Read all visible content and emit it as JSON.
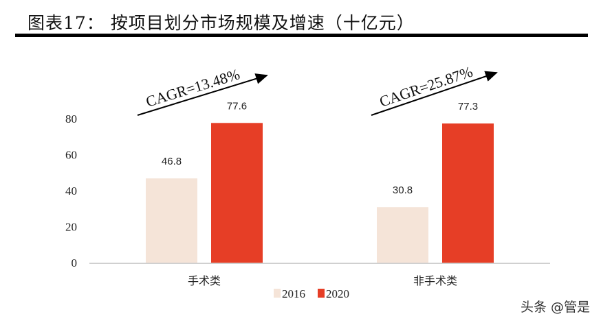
{
  "title": "图表17：  按项目划分市场规模及增速（十亿元）",
  "watermark": "头条 @管是",
  "chart_data": {
    "type": "bar",
    "title": "按项目划分市场规模及增速（十亿元）",
    "categories": [
      "手术类",
      "非手术类"
    ],
    "series": [
      {
        "name": "2016",
        "color": "#f5e4d8",
        "values": [
          46.8,
          30.8
        ]
      },
      {
        "name": "2020",
        "color": "#e63e26",
        "values": [
          77.6,
          77.3
        ]
      }
    ],
    "yticks": [
      0,
      20,
      40,
      60,
      80
    ],
    "ylim": [
      0,
      80
    ],
    "xlabel": "",
    "ylabel": "",
    "legend": "bottom",
    "annotations": [
      "CAGR=13.48%",
      "CAGR=25.87%"
    ]
  }
}
